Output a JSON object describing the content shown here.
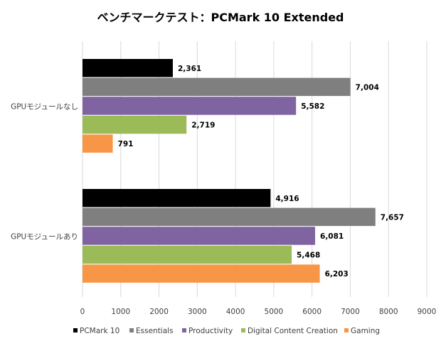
{
  "chart_data": {
    "type": "bar",
    "orientation": "horizontal",
    "title": "ベンチマークテスト：PCMark 10 Extended",
    "categories": [
      "GPUモジュールなし",
      "GPUモジュールあり"
    ],
    "series": [
      {
        "name": "PCMark 10",
        "color": "#000000",
        "values": [
          2361,
          4916
        ],
        "labels": [
          "2,361",
          "4,916"
        ]
      },
      {
        "name": "Essentials",
        "color": "#7f7f7f",
        "values": [
          7004,
          7657
        ],
        "labels": [
          "7,004",
          "7,657"
        ]
      },
      {
        "name": "Productivity",
        "color": "#8064a2",
        "values": [
          5582,
          6081
        ],
        "labels": [
          "5,582",
          "6,081"
        ]
      },
      {
        "name": "Digital Content Creation",
        "color": "#9bbb59",
        "values": [
          2719,
          5468
        ],
        "labels": [
          "2,719",
          "5,468"
        ]
      },
      {
        "name": "Gaming",
        "color": "#f79646",
        "values": [
          791,
          6203
        ],
        "labels": [
          "791",
          "6,203"
        ]
      }
    ],
    "xlim": [
      0,
      9000
    ],
    "xticks": [
      "0",
      "1000",
      "2000",
      "3000",
      "4000",
      "5000",
      "6000",
      "7000",
      "8000",
      "9000"
    ],
    "grid": true,
    "legend": "bottom"
  }
}
